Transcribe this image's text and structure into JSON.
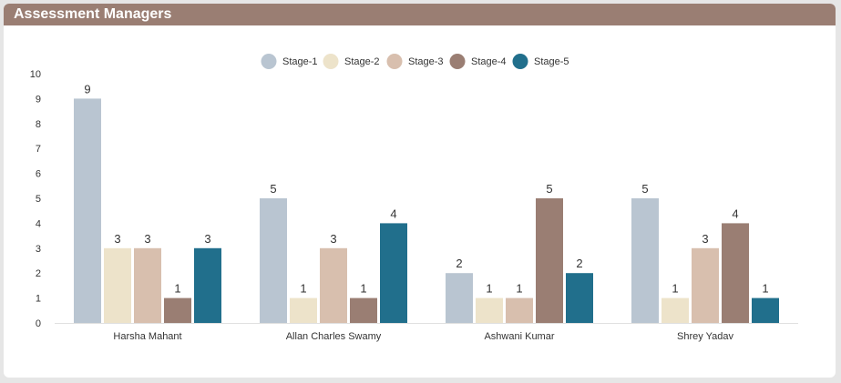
{
  "panel": {
    "title": "Assessment Managers"
  },
  "chart_data": {
    "type": "bar",
    "title": "",
    "xlabel": "",
    "ylabel": "",
    "ylim": [
      0,
      10
    ],
    "yticks": [
      0,
      1,
      2,
      3,
      4,
      5,
      6,
      7,
      8,
      9,
      10
    ],
    "grid": false,
    "legend_position": "top-center",
    "categories": [
      "Harsha Mahant",
      "Allan Charles Swamy",
      "Ashwani Kumar",
      "Shrey Yadav"
    ],
    "series": [
      {
        "name": "Stage-1",
        "color": "#b9c5d1",
        "values": [
          9,
          5,
          2,
          5
        ]
      },
      {
        "name": "Stage-2",
        "color": "#ede3ca",
        "values": [
          3,
          1,
          1,
          1
        ]
      },
      {
        "name": "Stage-3",
        "color": "#d8bfae",
        "values": [
          3,
          3,
          1,
          3
        ]
      },
      {
        "name": "Stage-4",
        "color": "#9a7e73",
        "values": [
          1,
          1,
          5,
          4
        ]
      },
      {
        "name": "Stage-5",
        "color": "#216f8c",
        "values": [
          3,
          4,
          2,
          1
        ]
      }
    ]
  }
}
